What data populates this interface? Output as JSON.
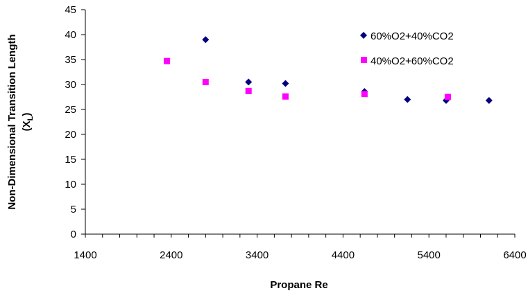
{
  "chart_data": {
    "type": "scatter",
    "title": "",
    "xlabel": "Propane Re",
    "ylabel": "Non-Dimensional Transition  Length",
    "ylabel_line2": "(X",
    "ylabel_subscript": "L",
    "ylabel_close": ")",
    "xlim": [
      1400,
      6400
    ],
    "ylim": [
      0,
      45
    ],
    "xticks": [
      "1400",
      "2400",
      "3400",
      "4400",
      "5400",
      "6400"
    ],
    "yticks": [
      "0",
      "5",
      "10",
      "15",
      "20",
      "25",
      "30",
      "35",
      "40",
      "45"
    ],
    "grid": false,
    "legend_position": "top-right",
    "series": [
      {
        "name": "60%O2+40%CO2",
        "marker": "diamond",
        "color": "#000080",
        "points": [
          {
            "x": 2800,
            "y": 39.0
          },
          {
            "x": 3300,
            "y": 30.5
          },
          {
            "x": 3730,
            "y": 30.2
          },
          {
            "x": 4650,
            "y": 28.6
          },
          {
            "x": 5150,
            "y": 27.0
          },
          {
            "x": 5600,
            "y": 26.8
          },
          {
            "x": 6100,
            "y": 26.8
          }
        ]
      },
      {
        "name": "40%O2+60%CO2",
        "marker": "square",
        "color": "#FF00FF",
        "points": [
          {
            "x": 2350,
            "y": 34.7
          },
          {
            "x": 2800,
            "y": 30.5
          },
          {
            "x": 3300,
            "y": 28.7
          },
          {
            "x": 3730,
            "y": 27.6
          },
          {
            "x": 4650,
            "y": 28.1
          },
          {
            "x": 5620,
            "y": 27.5
          }
        ]
      }
    ]
  }
}
